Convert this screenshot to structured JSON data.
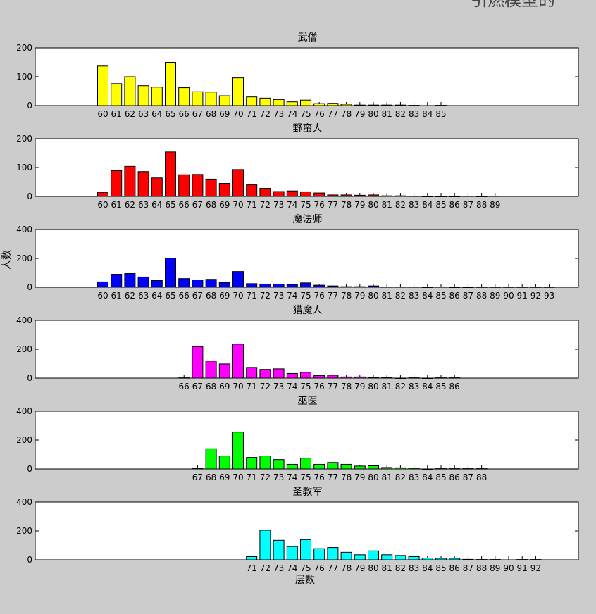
{
  "figure": {
    "ylabel": "人数",
    "xlabel": "层数",
    "top_text": "引燃模型的"
  },
  "chart_data": [
    {
      "type": "bar",
      "title": "武僧",
      "color": "#ffff00",
      "ylim": [
        0,
        200
      ],
      "yticks": [
        0,
        100,
        200
      ],
      "x": [
        60,
        61,
        62,
        63,
        64,
        65,
        66,
        67,
        68,
        69,
        70,
        71,
        72,
        73,
        74,
        75,
        76,
        77,
        78,
        79,
        80,
        81,
        82,
        83,
        84,
        85
      ],
      "values": [
        137,
        76,
        100,
        69,
        64,
        150,
        62,
        48,
        47,
        34,
        96,
        30,
        26,
        21,
        13,
        19,
        7,
        8,
        5,
        2,
        2,
        2,
        2,
        1,
        0,
        1
      ]
    },
    {
      "type": "bar",
      "title": "野蛮人",
      "color": "#ff0000",
      "ylim": [
        0,
        200
      ],
      "yticks": [
        0,
        100,
        200
      ],
      "x": [
        60,
        61,
        62,
        63,
        64,
        65,
        66,
        67,
        68,
        69,
        70,
        71,
        72,
        73,
        74,
        75,
        76,
        77,
        78,
        79,
        80,
        81,
        82,
        83,
        84,
        85,
        86,
        87,
        88,
        89
      ],
      "values": [
        14,
        89,
        104,
        86,
        64,
        154,
        75,
        76,
        60,
        45,
        93,
        40,
        28,
        17,
        19,
        16,
        12,
        5,
        5,
        4,
        5,
        2,
        2,
        1,
        0,
        0,
        0,
        1,
        0,
        1
      ]
    },
    {
      "type": "bar",
      "title": "魔法师",
      "color": "#0000ff",
      "ylim": [
        0,
        400
      ],
      "yticks": [
        0,
        200,
        400
      ],
      "x": [
        60,
        61,
        62,
        63,
        64,
        65,
        66,
        67,
        68,
        69,
        70,
        71,
        72,
        73,
        74,
        75,
        76,
        77,
        78,
        79,
        80,
        81,
        82,
        83,
        84,
        85,
        86,
        87,
        88,
        89,
        90,
        91,
        92,
        93
      ],
      "values": [
        37,
        90,
        95,
        71,
        47,
        202,
        60,
        51,
        55,
        32,
        109,
        25,
        22,
        22,
        19,
        30,
        14,
        9,
        4,
        4,
        9,
        2,
        2,
        2,
        0,
        2,
        0,
        0,
        1,
        1,
        1,
        1,
        1,
        1
      ]
    },
    {
      "type": "bar",
      "title": "猎魔人",
      "color": "#ff00ff",
      "ylim": [
        0,
        400
      ],
      "yticks": [
        0,
        200,
        400
      ],
      "x": [
        66,
        67,
        68,
        69,
        70,
        71,
        72,
        73,
        74,
        75,
        76,
        77,
        78,
        79,
        80,
        81,
        82,
        83,
        84,
        85,
        86
      ],
      "values": [
        2,
        218,
        118,
        98,
        235,
        74,
        60,
        64,
        32,
        40,
        18,
        20,
        8,
        8,
        4,
        3,
        0,
        2,
        0,
        2,
        2
      ]
    },
    {
      "type": "bar",
      "title": "巫医",
      "color": "#00ff00",
      "ylim": [
        0,
        400
      ],
      "yticks": [
        0,
        200,
        400
      ],
      "x": [
        67,
        68,
        69,
        70,
        71,
        72,
        73,
        74,
        75,
        76,
        77,
        78,
        79,
        80,
        81,
        82,
        83,
        84,
        85,
        86,
        87,
        88
      ],
      "values": [
        3,
        140,
        90,
        255,
        80,
        90,
        65,
        32,
        75,
        32,
        45,
        32,
        20,
        22,
        10,
        8,
        6,
        0,
        2,
        2,
        2,
        2
      ]
    },
    {
      "type": "bar",
      "title": "圣教军",
      "color": "#00ffff",
      "ylim": [
        0,
        400
      ],
      "yticks": [
        0,
        200,
        400
      ],
      "x": [
        71,
        72,
        73,
        74,
        75,
        76,
        77,
        78,
        79,
        80,
        81,
        82,
        83,
        84,
        85,
        86,
        87,
        88,
        89,
        90,
        91,
        92
      ],
      "values": [
        22,
        205,
        135,
        92,
        140,
        77,
        85,
        52,
        35,
        62,
        35,
        30,
        22,
        12,
        10,
        10,
        3,
        2,
        2,
        0,
        2,
        2
      ]
    }
  ]
}
